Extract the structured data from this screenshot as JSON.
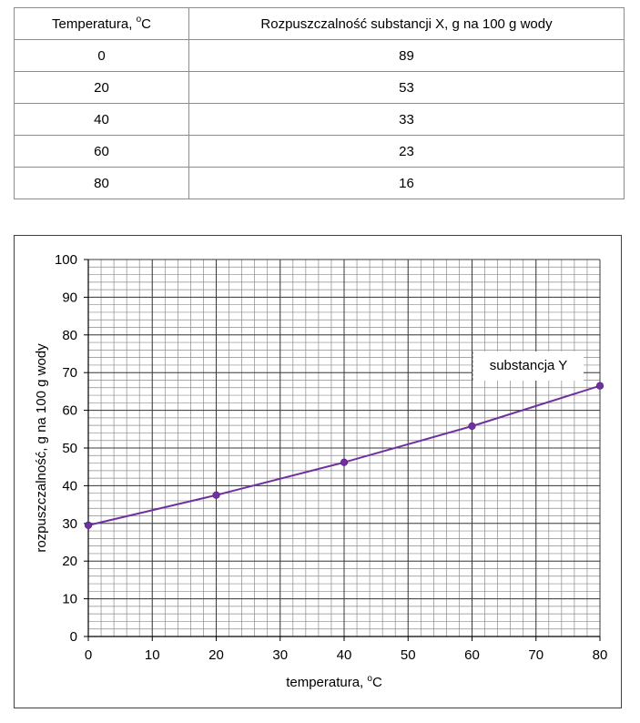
{
  "table": {
    "headers": [
      "Temperatura, ",
      "Rozpuszczalność substancji X, g na 100 g wody"
    ],
    "header_unit_sup": "o",
    "header_unit_tail": "C",
    "rows": [
      [
        "0",
        "89"
      ],
      [
        "20",
        "53"
      ],
      [
        "40",
        "33"
      ],
      [
        "60",
        "23"
      ],
      [
        "80",
        "16"
      ]
    ]
  },
  "chart_data": {
    "type": "line",
    "xlabel_prefix": "temperatura, ",
    "xlabel_sup": "o",
    "xlabel_tail": "C",
    "ylabel": "rozpuszczalność, g na 100 g wody",
    "xlim": [
      0,
      80
    ],
    "ylim": [
      0,
      100
    ],
    "x_ticks": [
      0,
      10,
      20,
      30,
      40,
      50,
      60,
      70,
      80
    ],
    "y_ticks": [
      0,
      10,
      20,
      30,
      40,
      50,
      60,
      70,
      80,
      90,
      100
    ],
    "grid": true,
    "minor_x_step": 2,
    "minor_y_step": 2,
    "series": [
      {
        "name": "substancja Y",
        "color": "#7030a0",
        "x": [
          0,
          20,
          40,
          60,
          80
        ],
        "y": [
          29.5,
          37.5,
          46.2,
          55.8,
          66.5
        ]
      }
    ]
  }
}
